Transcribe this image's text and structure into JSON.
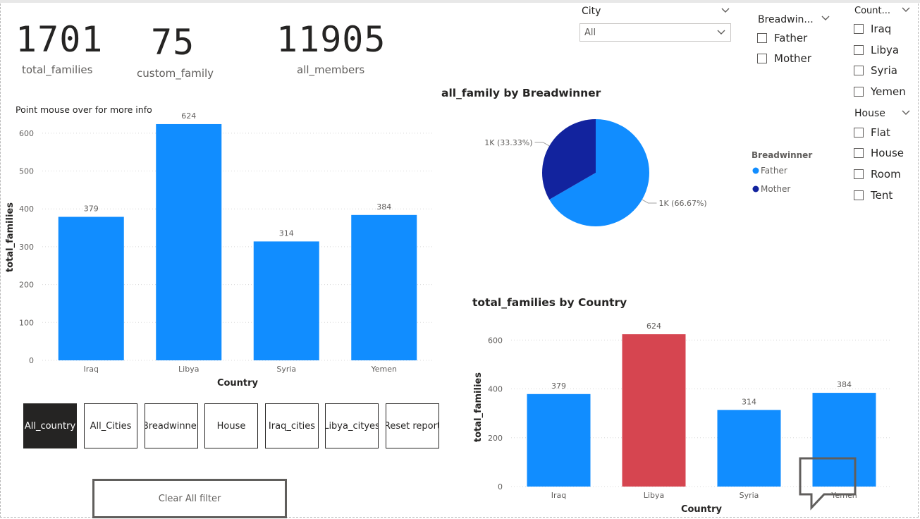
{
  "kpis": [
    {
      "value": "1701",
      "label": "total_families"
    },
    {
      "value": "75",
      "label": "custom_family"
    },
    {
      "value": "11905",
      "label": "all_members"
    }
  ],
  "hint": "Point mouse over for more info",
  "buttons": [
    "All_country",
    "All_Cities",
    "Breadwinner",
    "House",
    "Iraq_cities",
    "Libya_cityes",
    "Reset report"
  ],
  "clear_button": "Clear All filter",
  "city_slicer": {
    "title": "City",
    "selected": "All"
  },
  "breadwinner_slicer": {
    "title": "Breadwin...",
    "options": [
      "Father",
      "Mother"
    ]
  },
  "country_slicer": {
    "title": "Count...",
    "options": [
      "Iraq",
      "Libya",
      "Syria",
      "Yemen"
    ]
  },
  "house_slicer": {
    "title": "House",
    "options": [
      "Flat",
      "House",
      "Room",
      "Tent"
    ]
  },
  "colors": {
    "primary": "#118DFF",
    "dark": "#12239E",
    "highlight": "#D64550",
    "text": "#252423"
  },
  "chart_data": [
    {
      "type": "bar",
      "title": "",
      "categories": [
        "Iraq",
        "Libya",
        "Syria",
        "Yemen"
      ],
      "values": [
        379,
        624,
        314,
        384
      ],
      "xlabel": "Country",
      "ylabel": "total_families",
      "ylim": [
        0,
        650
      ],
      "yticks": [
        0,
        100,
        200,
        300,
        400,
        500,
        600
      ],
      "grid": true
    },
    {
      "type": "pie",
      "title": "all_family by Breadwinner",
      "legend_title": "Breadwinner",
      "legend_position": "right",
      "slices": [
        {
          "name": "Father",
          "value": 66.67,
          "label": "1K (66.67%)",
          "color": "#118DFF"
        },
        {
          "name": "Mother",
          "value": 33.33,
          "label": "1K (33.33%)",
          "color": "#12239E"
        }
      ]
    },
    {
      "type": "bar",
      "title": "total_families by Country",
      "categories": [
        "Iraq",
        "Libya",
        "Syria",
        "Yemen"
      ],
      "values": [
        379,
        624,
        314,
        384
      ],
      "highlighted": "Libya",
      "xlabel": "Country",
      "ylabel": "total_families",
      "ylim": [
        0,
        650
      ],
      "yticks": [
        0,
        200,
        400,
        600
      ],
      "grid": true
    }
  ]
}
